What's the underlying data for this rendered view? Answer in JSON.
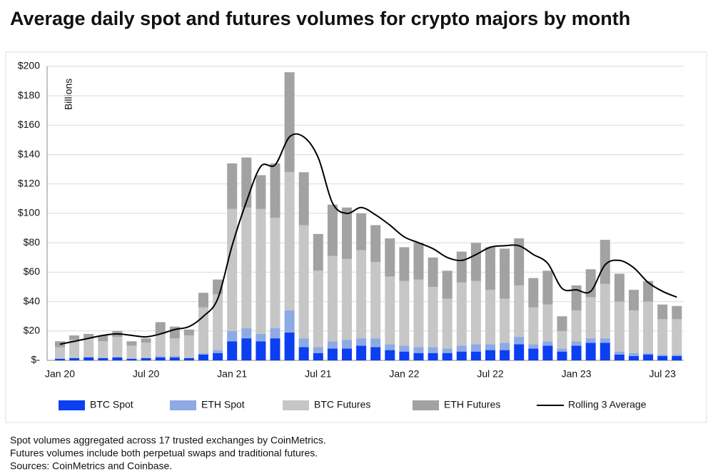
{
  "chart_data": {
    "type": "bar",
    "stacked": true,
    "title": "Average daily spot and futures volumes for crypto majors by month",
    "y_label": "Billions",
    "categories": [
      "Jan 20",
      null,
      null,
      null,
      null,
      null,
      "Jul 20",
      null,
      null,
      null,
      null,
      null,
      "Jan 21",
      null,
      null,
      null,
      null,
      null,
      "Jul 21",
      null,
      null,
      null,
      null,
      null,
      "Jan 22",
      null,
      null,
      null,
      null,
      null,
      "Jul 22",
      null,
      null,
      null,
      null,
      null,
      "Jan 23",
      null,
      null,
      null,
      null,
      null,
      "Jul 23",
      null
    ],
    "series": [
      {
        "name": "BTC Spot",
        "color": "#0b3ff0",
        "values": [
          1,
          1.5,
          2,
          1.5,
          2,
          1,
          1.5,
          2,
          2,
          1.5,
          4,
          5,
          13,
          15,
          13,
          15,
          19,
          9,
          5,
          8,
          8,
          10,
          9,
          7,
          6,
          5,
          5,
          5,
          6,
          6,
          7,
          7,
          11,
          8,
          10,
          6,
          10,
          12,
          12,
          4,
          3,
          4,
          3,
          3
        ]
      },
      {
        "name": "ETH Spot",
        "color": "#8eaae4",
        "values": [
          0.5,
          0.5,
          0.5,
          0.5,
          0.5,
          0.5,
          0.5,
          1,
          1,
          0.5,
          1,
          2,
          7,
          7,
          5,
          7,
          15,
          6,
          4,
          5,
          6,
          5,
          6,
          4,
          4,
          4,
          4,
          3,
          4,
          5,
          4,
          5,
          5,
          3,
          3,
          2,
          3,
          3,
          3,
          2,
          2,
          1,
          1,
          1
        ]
      },
      {
        "name": "BTC Futures",
        "color": "#c6c6c6",
        "values": [
          7.5,
          12,
          12.5,
          11,
          13.5,
          8.5,
          10,
          15,
          12,
          15,
          31,
          38,
          83,
          82,
          85,
          75,
          94,
          77,
          52,
          58,
          55,
          60,
          52,
          46,
          44,
          46,
          41,
          34,
          43,
          43,
          37,
          30,
          35,
          25,
          25,
          12,
          21,
          28,
          37,
          34,
          29,
          35,
          24,
          24
        ]
      },
      {
        "name": "ETH Futures",
        "color": "#a2a2a2",
        "values": [
          4,
          3,
          3,
          4,
          4,
          3,
          3,
          8,
          8,
          4,
          10,
          10,
          31,
          34,
          23,
          37,
          68,
          36,
          25,
          35,
          35,
          25,
          25,
          26,
          23,
          25,
          20,
          19,
          21,
          26,
          29,
          34,
          32,
          20,
          23,
          10,
          17,
          19,
          30,
          19,
          14,
          14,
          10,
          9
        ]
      },
      {
        "name": "Rolling 3 Average",
        "type": "line",
        "color": "#000000",
        "values": [
          11,
          13,
          15,
          17,
          18,
          17,
          16,
          18,
          21,
          23,
          30,
          42,
          78,
          108,
          132,
          133,
          152,
          152,
          138,
          107,
          100,
          104,
          99,
          92,
          84,
          80,
          76,
          70,
          68,
          72,
          77,
          78,
          78,
          72,
          66,
          49,
          48,
          47,
          65,
          68,
          63,
          53,
          47,
          43
        ]
      }
    ],
    "ylim": [
      0,
      200
    ],
    "yticks": [
      {
        "value": 0,
        "label": "$-"
      },
      {
        "value": 20,
        "label": "$20"
      },
      {
        "value": 40,
        "label": "$40"
      },
      {
        "value": 60,
        "label": "$60"
      },
      {
        "value": 80,
        "label": "$80"
      },
      {
        "value": 100,
        "label": "$100"
      },
      {
        "value": 120,
        "label": "$120"
      },
      {
        "value": 140,
        "label": "$140"
      },
      {
        "value": 160,
        "label": "$160"
      },
      {
        "value": 180,
        "label": "$180"
      },
      {
        "value": 200,
        "label": "$200"
      }
    ],
    "grid": true,
    "legend": "bottom",
    "notes": [
      "Spot volumes aggregated across 17 trusted exchanges by CoinMetrics.",
      "Futures volumes include both perpetual swaps and traditional futures.",
      "Sources: CoinMetrics and Coinbase."
    ]
  }
}
